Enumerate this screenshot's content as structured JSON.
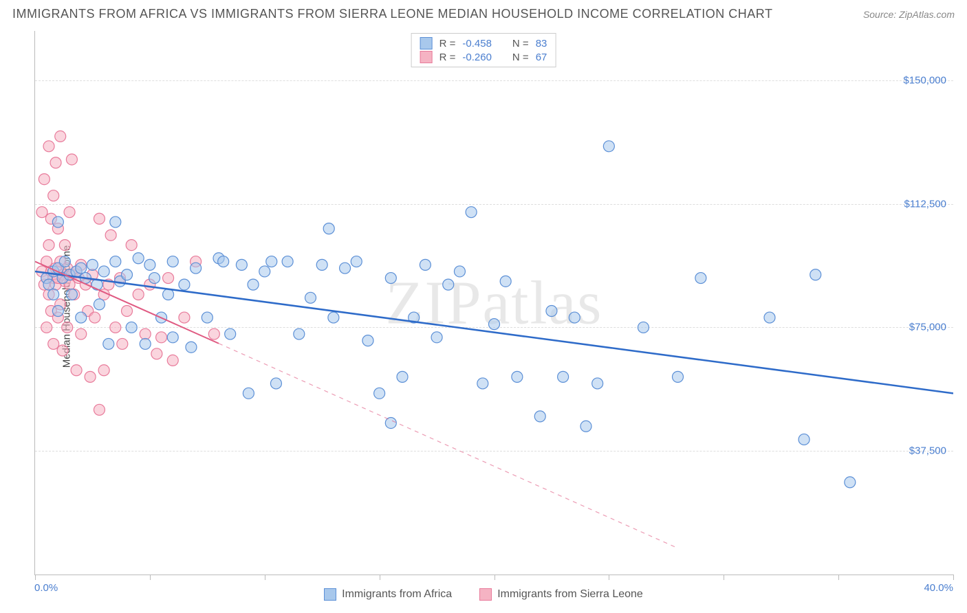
{
  "title": "IMMIGRANTS FROM AFRICA VS IMMIGRANTS FROM SIERRA LEONE MEDIAN HOUSEHOLD INCOME CORRELATION CHART",
  "source_label": "Source:",
  "source_value": "ZipAtlas.com",
  "watermark": "ZIPatlas",
  "y_axis_label": "Median Household Income",
  "chart": {
    "type": "scatter",
    "xlim": [
      0,
      40
    ],
    "ylim": [
      0,
      165000
    ],
    "x_min_label": "0.0%",
    "x_max_label": "40.0%",
    "x_tick_step": 5,
    "y_ticks": [
      37500,
      75000,
      112500,
      150000
    ],
    "y_tick_labels": [
      "$37,500",
      "$75,000",
      "$112,500",
      "$150,000"
    ],
    "grid_color": "#dddddd",
    "axis_color": "#bbbbbb",
    "background_color": "#ffffff",
    "series": [
      {
        "name": "Immigrants from Africa",
        "color_fill": "#a8c8ec",
        "color_stroke": "#5b8fd6",
        "fill_opacity": 0.55,
        "marker_radius": 8,
        "R": "-0.458",
        "N": "83",
        "trend": {
          "x1": 0,
          "y1": 92000,
          "x2": 40,
          "y2": 55000,
          "solid_until_x": 40,
          "color": "#2e6bc9",
          "width": 2.5
        },
        "points": [
          [
            0.5,
            90000
          ],
          [
            0.6,
            88000
          ],
          [
            0.8,
            92000
          ],
          [
            0.8,
            85000
          ],
          [
            1.0,
            93000
          ],
          [
            1.0,
            80000
          ],
          [
            1.0,
            107000
          ],
          [
            1.2,
            90000
          ],
          [
            1.3,
            95000
          ],
          [
            1.5,
            91000
          ],
          [
            1.6,
            85000
          ],
          [
            1.8,
            92000
          ],
          [
            2.0,
            93000
          ],
          [
            2.0,
            78000
          ],
          [
            2.2,
            90000
          ],
          [
            2.5,
            94000
          ],
          [
            2.7,
            88000
          ],
          [
            2.8,
            82000
          ],
          [
            3.0,
            92000
          ],
          [
            3.2,
            70000
          ],
          [
            3.5,
            95000
          ],
          [
            3.5,
            107000
          ],
          [
            3.7,
            89000
          ],
          [
            4.0,
            91000
          ],
          [
            4.2,
            75000
          ],
          [
            4.5,
            96000
          ],
          [
            4.8,
            70000
          ],
          [
            5.0,
            94000
          ],
          [
            5.2,
            90000
          ],
          [
            5.5,
            78000
          ],
          [
            5.8,
            85000
          ],
          [
            6.0,
            95000
          ],
          [
            6.0,
            72000
          ],
          [
            6.5,
            88000
          ],
          [
            6.8,
            69000
          ],
          [
            7.0,
            93000
          ],
          [
            7.5,
            78000
          ],
          [
            8.0,
            96000
          ],
          [
            8.2,
            95000
          ],
          [
            8.5,
            73000
          ],
          [
            9.0,
            94000
          ],
          [
            9.3,
            55000
          ],
          [
            9.5,
            88000
          ],
          [
            10.0,
            92000
          ],
          [
            10.3,
            95000
          ],
          [
            10.5,
            58000
          ],
          [
            11.0,
            95000
          ],
          [
            11.5,
            73000
          ],
          [
            12.0,
            84000
          ],
          [
            12.5,
            94000
          ],
          [
            12.8,
            105000
          ],
          [
            13.0,
            78000
          ],
          [
            13.5,
            93000
          ],
          [
            14.0,
            95000
          ],
          [
            14.5,
            71000
          ],
          [
            15.0,
            55000
          ],
          [
            15.5,
            46000
          ],
          [
            15.5,
            90000
          ],
          [
            16.0,
            60000
          ],
          [
            16.5,
            78000
          ],
          [
            17.0,
            94000
          ],
          [
            17.5,
            72000
          ],
          [
            18.0,
            88000
          ],
          [
            18.5,
            92000
          ],
          [
            19.0,
            110000
          ],
          [
            19.5,
            58000
          ],
          [
            20.0,
            76000
          ],
          [
            20.5,
            89000
          ],
          [
            21.0,
            60000
          ],
          [
            22.0,
            48000
          ],
          [
            22.5,
            80000
          ],
          [
            23.0,
            60000
          ],
          [
            23.5,
            78000
          ],
          [
            24.0,
            45000
          ],
          [
            24.5,
            58000
          ],
          [
            25.0,
            130000
          ],
          [
            26.5,
            75000
          ],
          [
            28.0,
            60000
          ],
          [
            29.0,
            90000
          ],
          [
            32.0,
            78000
          ],
          [
            33.5,
            41000
          ],
          [
            34.0,
            91000
          ],
          [
            35.5,
            28000
          ]
        ]
      },
      {
        "name": "Immigrants from Sierra Leone",
        "color_fill": "#f5b3c3",
        "color_stroke": "#e87a9a",
        "fill_opacity": 0.55,
        "marker_radius": 8,
        "R": "-0.260",
        "N": "67",
        "trend": {
          "x1": 0,
          "y1": 95000,
          "x2": 28,
          "y2": 8000,
          "solid_until_x": 8,
          "color": "#e05a82",
          "width": 2
        },
        "points": [
          [
            0.3,
            92000
          ],
          [
            0.3,
            110000
          ],
          [
            0.4,
            88000
          ],
          [
            0.4,
            120000
          ],
          [
            0.5,
            90000
          ],
          [
            0.5,
            95000
          ],
          [
            0.5,
            75000
          ],
          [
            0.6,
            100000
          ],
          [
            0.6,
            85000
          ],
          [
            0.6,
            130000
          ],
          [
            0.7,
            92000
          ],
          [
            0.7,
            80000
          ],
          [
            0.7,
            108000
          ],
          [
            0.8,
            90000
          ],
          [
            0.8,
            115000
          ],
          [
            0.8,
            70000
          ],
          [
            0.9,
            93000
          ],
          [
            0.9,
            125000
          ],
          [
            0.9,
            88000
          ],
          [
            1.0,
            90000
          ],
          [
            1.0,
            78000
          ],
          [
            1.0,
            105000
          ],
          [
            1.1,
            95000
          ],
          [
            1.1,
            82000
          ],
          [
            1.1,
            133000
          ],
          [
            1.2,
            91000
          ],
          [
            1.2,
            68000
          ],
          [
            1.3,
            89000
          ],
          [
            1.3,
            100000
          ],
          [
            1.4,
            93000
          ],
          [
            1.4,
            75000
          ],
          [
            1.5,
            88000
          ],
          [
            1.5,
            110000
          ],
          [
            1.6,
            91000
          ],
          [
            1.6,
            126000
          ],
          [
            1.7,
            85000
          ],
          [
            1.8,
            92000
          ],
          [
            1.8,
            62000
          ],
          [
            1.9,
            90000
          ],
          [
            2.0,
            94000
          ],
          [
            2.0,
            73000
          ],
          [
            2.2,
            88000
          ],
          [
            2.3,
            80000
          ],
          [
            2.4,
            60000
          ],
          [
            2.5,
            91000
          ],
          [
            2.6,
            78000
          ],
          [
            2.8,
            108000
          ],
          [
            2.8,
            50000
          ],
          [
            3.0,
            85000
          ],
          [
            3.0,
            62000
          ],
          [
            3.2,
            88000
          ],
          [
            3.3,
            103000
          ],
          [
            3.5,
            75000
          ],
          [
            3.7,
            90000
          ],
          [
            3.8,
            70000
          ],
          [
            4.0,
            80000
          ],
          [
            4.2,
            100000
          ],
          [
            4.5,
            85000
          ],
          [
            4.8,
            73000
          ],
          [
            5.0,
            88000
          ],
          [
            5.3,
            67000
          ],
          [
            5.5,
            72000
          ],
          [
            5.8,
            90000
          ],
          [
            6.0,
            65000
          ],
          [
            6.5,
            78000
          ],
          [
            7.0,
            95000
          ],
          [
            7.8,
            73000
          ]
        ]
      }
    ]
  },
  "legend": {
    "R_label": "R =",
    "N_label": "N ="
  }
}
